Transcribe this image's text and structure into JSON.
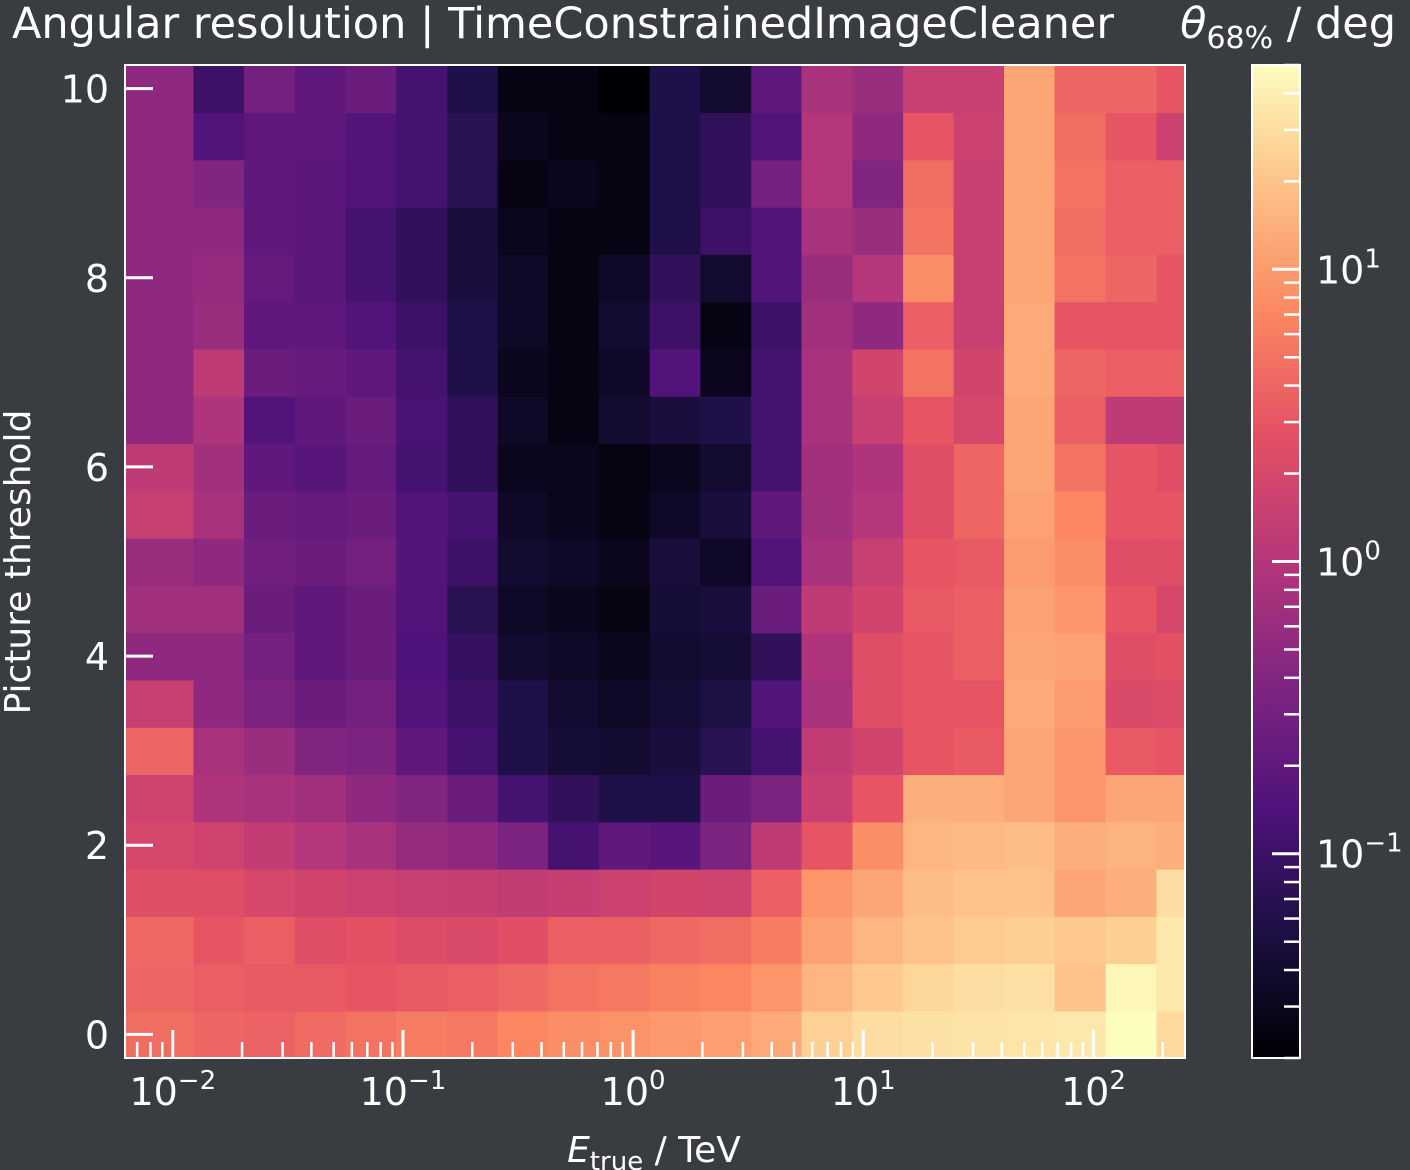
{
  "chart_data": {
    "type": "heatmap",
    "title": "Angular resolution | TimeConstrainedImageCleaner",
    "xlabel_main": "E",
    "xlabel_sub": "true",
    "xlabel_unit": " / TeV",
    "ylabel": "Picture threshold",
    "colorbar_label_main": "θ",
    "colorbar_label_sub": "68%",
    "colorbar_label_unit": " / deg",
    "x_scale": "log",
    "xlim_tev": [
      0.0062,
      250
    ],
    "ylim": [
      -0.25,
      10.25
    ],
    "yticks": [
      "0",
      "2",
      "4",
      "6",
      "8",
      "10"
    ],
    "xticks": [
      {
        "base": "10",
        "exp": "−2",
        "value": 0.01
      },
      {
        "base": "10",
        "exp": "−1",
        "value": 0.1
      },
      {
        "base": "10",
        "exp": "0",
        "value": 1
      },
      {
        "base": "10",
        "exp": "1",
        "value": 10
      },
      {
        "base": "10",
        "exp": "2",
        "value": 100
      }
    ],
    "colorbar_ticks": [
      {
        "base": "10",
        "exp": "−1",
        "value": 0.1
      },
      {
        "base": "10",
        "exp": "0",
        "value": 1
      },
      {
        "base": "10",
        "exp": "1",
        "value": 10
      }
    ],
    "color_scale": "log",
    "color_range_deg": [
      0.02,
      50
    ],
    "colormap": "magma",
    "energy_bin_edges_tev": [
      0.0062,
      0.0123,
      0.0204,
      0.0339,
      0.0565,
      0.0934,
      0.156,
      0.258,
      0.427,
      0.709,
      1.18,
      1.96,
      3.26,
      5.39,
      8.98,
      14.9,
      24.7,
      40.9,
      67.8,
      113,
      188,
      250
    ],
    "threshold_values": [
      0,
      0.5,
      1,
      1.5,
      2,
      2.5,
      3,
      3.5,
      4,
      4.5,
      5,
      5.5,
      6,
      6.5,
      7,
      7.5,
      8,
      8.5,
      9,
      9.5,
      10
    ],
    "values_deg": [
      [
        4.5,
        4.0,
        3.7,
        4.3,
        5.0,
        6.0,
        5.5,
        7.0,
        8.0,
        8.5,
        9.5,
        10.5,
        13.0,
        25.0,
        30.0,
        32.0,
        33.0,
        34.0,
        36.0,
        50.0,
        28.0
      ],
      [
        4.0,
        3.5,
        3.3,
        3.2,
        3.0,
        3.2,
        3.5,
        4.2,
        5.0,
        5.5,
        6.5,
        7.0,
        9.0,
        16.0,
        22.0,
        27.0,
        30.0,
        32.0,
        20.0,
        45.0,
        35.0
      ],
      [
        4.2,
        3.0,
        3.5,
        2.5,
        2.8,
        2.3,
        2.2,
        2.6,
        3.5,
        3.6,
        4.2,
        4.5,
        6.0,
        11.0,
        16.0,
        20.0,
        23.0,
        24.0,
        22.0,
        24.0,
        35.0
      ],
      [
        2.5,
        2.5,
        2.0,
        1.8,
        1.6,
        1.5,
        1.4,
        1.3,
        1.4,
        1.6,
        1.8,
        1.7,
        3.5,
        9.0,
        12.0,
        18.0,
        20.0,
        20.0,
        12.0,
        14.0,
        30.0
      ],
      [
        2.0,
        1.7,
        1.3,
        1.0,
        0.8,
        0.55,
        0.5,
        0.35,
        0.12,
        0.2,
        0.17,
        0.35,
        1.2,
        3.0,
        8.0,
        16.0,
        17.0,
        18.0,
        14.0,
        15.0,
        14.0
      ],
      [
        1.7,
        0.9,
        0.8,
        0.7,
        0.5,
        0.4,
        0.25,
        0.12,
        0.08,
        0.06,
        0.06,
        0.25,
        0.35,
        1.5,
        3.0,
        14.0,
        14.0,
        12.0,
        9.0,
        12.0,
        12.0
      ],
      [
        4.0,
        0.8,
        0.6,
        0.4,
        0.35,
        0.2,
        0.12,
        0.06,
        0.045,
        0.04,
        0.05,
        0.07,
        0.12,
        1.3,
        1.8,
        3.0,
        3.3,
        12.0,
        9.0,
        3.2,
        3.0
      ],
      [
        1.5,
        0.5,
        0.35,
        0.25,
        0.3,
        0.15,
        0.1,
        0.06,
        0.04,
        0.035,
        0.045,
        0.055,
        0.15,
        0.8,
        2.5,
        3.0,
        3.0,
        13.0,
        10.0,
        2.2,
        2.3
      ],
      [
        0.5,
        0.5,
        0.3,
        0.2,
        0.25,
        0.14,
        0.09,
        0.04,
        0.035,
        0.03,
        0.04,
        0.045,
        0.08,
        0.9,
        2.5,
        3.0,
        3.5,
        12.0,
        11.0,
        2.5,
        2.8
      ],
      [
        0.7,
        0.7,
        0.25,
        0.2,
        0.25,
        0.15,
        0.07,
        0.035,
        0.03,
        0.025,
        0.045,
        0.05,
        0.25,
        1.2,
        1.8,
        3.2,
        3.5,
        11.0,
        9.0,
        3.0,
        2.0
      ],
      [
        0.6,
        0.5,
        0.28,
        0.25,
        0.3,
        0.16,
        0.1,
        0.04,
        0.035,
        0.03,
        0.05,
        0.035,
        0.15,
        0.8,
        1.5,
        3.0,
        3.2,
        10.0,
        8.0,
        2.5,
        2.5
      ],
      [
        1.5,
        0.8,
        0.25,
        0.22,
        0.25,
        0.15,
        0.12,
        0.035,
        0.03,
        0.025,
        0.035,
        0.05,
        0.2,
        0.7,
        1.0,
        2.5,
        4.0,
        11.0,
        7.0,
        3.0,
        3.0
      ],
      [
        1.2,
        0.7,
        0.2,
        0.17,
        0.22,
        0.12,
        0.08,
        0.03,
        0.03,
        0.025,
        0.03,
        0.04,
        0.12,
        0.7,
        0.9,
        2.5,
        4.0,
        12.0,
        5.0,
        3.0,
        2.5
      ],
      [
        0.5,
        0.9,
        0.15,
        0.2,
        0.25,
        0.13,
        0.08,
        0.035,
        0.025,
        0.04,
        0.05,
        0.06,
        0.12,
        0.8,
        1.5,
        3.0,
        2.0,
        12.0,
        3.5,
        1.2,
        1.2
      ],
      [
        0.5,
        1.2,
        0.25,
        0.22,
        0.2,
        0.12,
        0.06,
        0.03,
        0.025,
        0.035,
        0.15,
        0.03,
        0.12,
        0.8,
        1.8,
        5.0,
        1.8,
        13.0,
        4.0,
        3.5,
        3.5
      ],
      [
        0.5,
        0.6,
        0.2,
        0.2,
        0.15,
        0.1,
        0.06,
        0.035,
        0.025,
        0.04,
        0.1,
        0.025,
        0.1,
        0.7,
        0.5,
        3.5,
        1.5,
        13.0,
        3.0,
        3.0,
        3.0
      ],
      [
        0.5,
        0.55,
        0.22,
        0.18,
        0.12,
        0.08,
        0.05,
        0.035,
        0.025,
        0.035,
        0.08,
        0.04,
        0.15,
        0.6,
        1.0,
        8.0,
        1.5,
        12.0,
        5.0,
        4.0,
        3.0
      ],
      [
        0.5,
        0.5,
        0.2,
        0.18,
        0.12,
        0.08,
        0.05,
        0.03,
        0.025,
        0.025,
        0.06,
        0.1,
        0.15,
        0.8,
        0.6,
        5.0,
        1.5,
        12.0,
        4.5,
        3.5,
        3.5
      ],
      [
        0.5,
        0.4,
        0.2,
        0.18,
        0.15,
        0.12,
        0.07,
        0.025,
        0.03,
        0.025,
        0.06,
        0.08,
        0.3,
        1.0,
        0.4,
        4.5,
        1.5,
        12.0,
        5.0,
        3.5,
        3.5
      ],
      [
        0.5,
        0.15,
        0.2,
        0.2,
        0.15,
        0.12,
        0.07,
        0.03,
        0.025,
        0.025,
        0.06,
        0.08,
        0.15,
        1.0,
        0.5,
        3.0,
        1.6,
        12.0,
        4.5,
        3.0,
        1.6
      ],
      [
        0.5,
        0.1,
        0.3,
        0.2,
        0.25,
        0.12,
        0.06,
        0.025,
        0.025,
        0.02,
        0.06,
        0.04,
        0.2,
        0.8,
        0.6,
        1.5,
        1.5,
        12.0,
        4.0,
        4.0,
        3.0
      ]
    ]
  }
}
